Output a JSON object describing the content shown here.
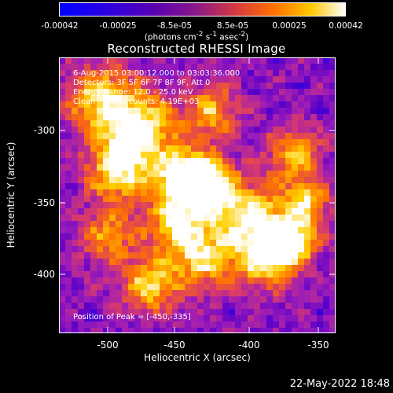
{
  "colorbar": {
    "ticks": [
      "-0.00042",
      "-0.00025",
      "-8.5e-05",
      "8.5e-05",
      "0.00025",
      "0.00042"
    ],
    "units_base": "(photons cm",
    "units_exp1": "-2",
    "units_mid1": " s",
    "units_exp2": "-1",
    "units_mid2": " asec",
    "units_exp3": "-2",
    "units_end": ")"
  },
  "title": "Reconstructed RHESSI Image",
  "info": {
    "line1": "6-Aug-2015 03:00:12.000 to 03:03:36.000",
    "line2": "Detectors: 3F 5F 6F 7F 8F 9F, Att 0",
    "line3": "Energy Range: 12.0 - 25.0 keV",
    "line4": "Clean     Total counts: 4.19E+03"
  },
  "peak_label": "Position of Peak = [-450,-335]",
  "x_axis": {
    "label": "Heliocentric X (arcsec)",
    "ticks": [
      "-500",
      "-450",
      "-400",
      "-350"
    ],
    "values": [
      -500,
      -450,
      -400,
      -350
    ],
    "range": [
      -533,
      -347
    ]
  },
  "y_axis": {
    "label": "Heliocentric Y (arcsec)",
    "ticks": [
      "-300",
      "-350",
      "-400"
    ],
    "values": [
      -300,
      -350,
      -400
    ],
    "range": [
      -441,
      -255
    ]
  },
  "peak": {
    "x": -450,
    "y": -335
  },
  "timestamp": "22-May-2022 18:48",
  "colors": {
    "cmap": [
      "#0000ff",
      "#5a00c8",
      "#9c1cb8",
      "#d83a6a",
      "#ff7400",
      "#ffd000",
      "#ffffff"
    ],
    "background": "#000000"
  }
}
